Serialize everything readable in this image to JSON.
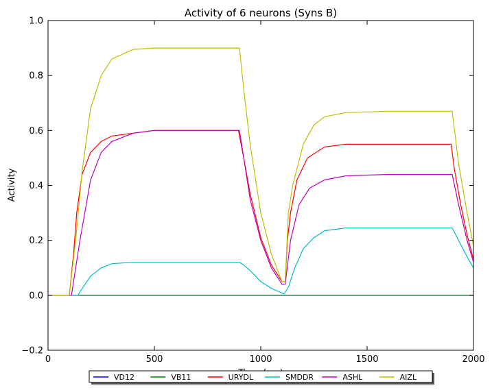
{
  "chart_data": {
    "type": "line",
    "title": "Activity of 6 neurons (Syns B)",
    "xlabel": "Time (ms)",
    "ylabel": "Activity",
    "xlim": [
      0,
      2000
    ],
    "ylim": [
      -0.2,
      1.0
    ],
    "x_ticks": [
      "0",
      "500",
      "1000",
      "1500",
      "2000"
    ],
    "y_ticks": [
      "−0.2",
      "0.0",
      "0.2",
      "0.4",
      "0.6",
      "0.8",
      "1.0"
    ],
    "grid": false,
    "legend_position": "bottom-center-outside",
    "series": [
      {
        "name": "VD12",
        "color": "#0000ff",
        "points": [
          [
            0,
            0.0
          ],
          [
            2000,
            0.0
          ]
        ]
      },
      {
        "name": "VB11",
        "color": "#008000",
        "points": [
          [
            0,
            0.0
          ],
          [
            2000,
            0.0
          ]
        ]
      },
      {
        "name": "URYDL",
        "color": "#ff0000",
        "points": [
          [
            0,
            0.0
          ],
          [
            100,
            0.0
          ],
          [
            120,
            0.15
          ],
          [
            135,
            0.3
          ],
          [
            160,
            0.44
          ],
          [
            200,
            0.52
          ],
          [
            250,
            0.56
          ],
          [
            300,
            0.58
          ],
          [
            400,
            0.59
          ],
          [
            500,
            0.6
          ],
          [
            700,
            0.6
          ],
          [
            895,
            0.6
          ],
          [
            920,
            0.5
          ],
          [
            950,
            0.37
          ],
          [
            1000,
            0.21
          ],
          [
            1050,
            0.11
          ],
          [
            1100,
            0.05
          ],
          [
            1115,
            0.05
          ],
          [
            1125,
            0.2
          ],
          [
            1140,
            0.3
          ],
          [
            1170,
            0.42
          ],
          [
            1220,
            0.5
          ],
          [
            1300,
            0.54
          ],
          [
            1400,
            0.55
          ],
          [
            1600,
            0.55
          ],
          [
            1895,
            0.55
          ],
          [
            1910,
            0.46
          ],
          [
            1940,
            0.33
          ],
          [
            1970,
            0.22
          ],
          [
            2000,
            0.13
          ]
        ]
      },
      {
        "name": "SMDDR",
        "color": "#00bfbf",
        "points": [
          [
            0,
            0.0
          ],
          [
            140,
            0.0
          ],
          [
            165,
            0.03
          ],
          [
            200,
            0.07
          ],
          [
            250,
            0.1
          ],
          [
            300,
            0.115
          ],
          [
            400,
            0.12
          ],
          [
            600,
            0.12
          ],
          [
            900,
            0.12
          ],
          [
            920,
            0.11
          ],
          [
            950,
            0.09
          ],
          [
            1000,
            0.05
          ],
          [
            1050,
            0.025
          ],
          [
            1110,
            0.005
          ],
          [
            1130,
            0.03
          ],
          [
            1160,
            0.1
          ],
          [
            1200,
            0.17
          ],
          [
            1250,
            0.21
          ],
          [
            1300,
            0.235
          ],
          [
            1400,
            0.245
          ],
          [
            1600,
            0.245
          ],
          [
            1900,
            0.245
          ],
          [
            1930,
            0.2
          ],
          [
            1970,
            0.14
          ],
          [
            2000,
            0.1
          ]
        ]
      },
      {
        "name": "ASHL",
        "color": "#bf00bf",
        "points": [
          [
            0,
            0.0
          ],
          [
            110,
            0.0
          ],
          [
            150,
            0.2
          ],
          [
            200,
            0.42
          ],
          [
            250,
            0.52
          ],
          [
            300,
            0.56
          ],
          [
            400,
            0.59
          ],
          [
            500,
            0.6
          ],
          [
            700,
            0.6
          ],
          [
            900,
            0.6
          ],
          [
            920,
            0.5
          ],
          [
            950,
            0.35
          ],
          [
            1000,
            0.2
          ],
          [
            1050,
            0.1
          ],
          [
            1100,
            0.04
          ],
          [
            1115,
            0.04
          ],
          [
            1140,
            0.2
          ],
          [
            1180,
            0.33
          ],
          [
            1230,
            0.39
          ],
          [
            1300,
            0.42
          ],
          [
            1400,
            0.435
          ],
          [
            1600,
            0.44
          ],
          [
            1900,
            0.44
          ],
          [
            1930,
            0.33
          ],
          [
            1970,
            0.2
          ],
          [
            2000,
            0.12
          ]
        ]
      },
      {
        "name": "AIZL",
        "color": "#bfbf00",
        "points": [
          [
            0,
            0.0
          ],
          [
            100,
            0.0
          ],
          [
            130,
            0.2
          ],
          [
            160,
            0.45
          ],
          [
            200,
            0.68
          ],
          [
            250,
            0.8
          ],
          [
            300,
            0.86
          ],
          [
            400,
            0.895
          ],
          [
            500,
            0.9
          ],
          [
            700,
            0.9
          ],
          [
            900,
            0.9
          ],
          [
            920,
            0.75
          ],
          [
            950,
            0.55
          ],
          [
            1000,
            0.3
          ],
          [
            1050,
            0.15
          ],
          [
            1100,
            0.05
          ],
          [
            1115,
            0.05
          ],
          [
            1130,
            0.3
          ],
          [
            1150,
            0.4
          ],
          [
            1200,
            0.55
          ],
          [
            1250,
            0.62
          ],
          [
            1300,
            0.65
          ],
          [
            1400,
            0.665
          ],
          [
            1600,
            0.67
          ],
          [
            1900,
            0.67
          ],
          [
            1930,
            0.48
          ],
          [
            1970,
            0.3
          ],
          [
            2000,
            0.18
          ]
        ]
      }
    ]
  }
}
